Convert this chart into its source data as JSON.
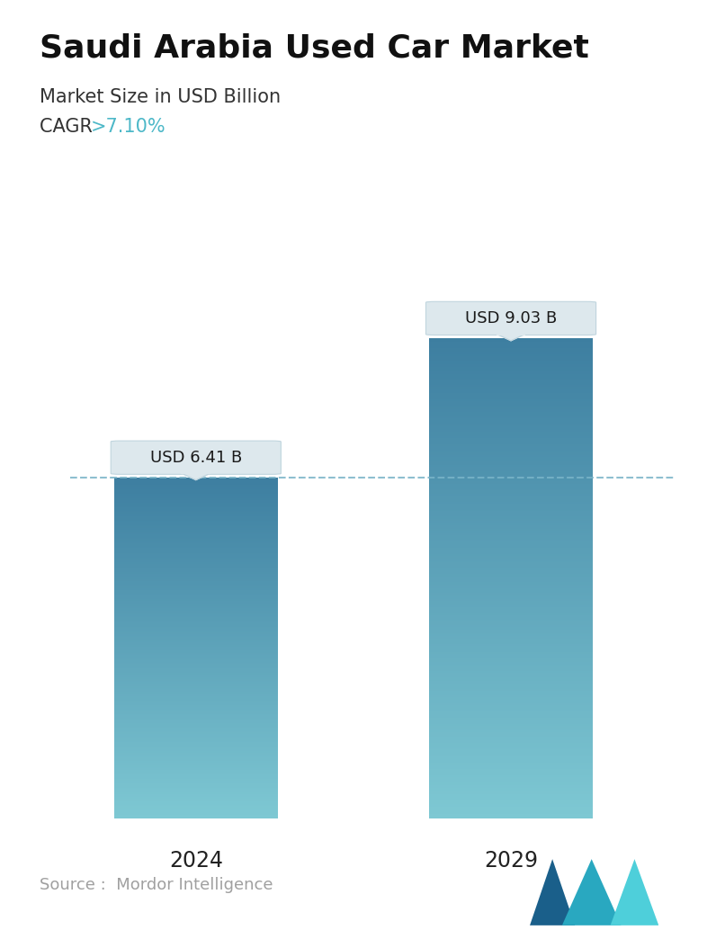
{
  "title": "Saudi Arabia Used Car Market",
  "subtitle": "Market Size in USD Billion",
  "cagr_label": "CAGR ",
  "cagr_value": ">7.10%",
  "cagr_color": "#4db8c8",
  "years": [
    "2024",
    "2029"
  ],
  "values": [
    6.41,
    9.03
  ],
  "bar_labels": [
    "USD 6.41 B",
    "USD 9.03 B"
  ],
  "bar_top_color": "#3d7ea0",
  "bar_bottom_color": "#7ec8d3",
  "dashed_line_color": "#7ab4c8",
  "source_text": "Source :  Mordor Intelligence",
  "source_color": "#a0a0a0",
  "background_color": "#ffffff",
  "title_fontsize": 26,
  "subtitle_fontsize": 15,
  "cagr_fontsize": 15,
  "bar_label_fontsize": 13,
  "year_fontsize": 17,
  "source_fontsize": 13,
  "callout_bg": "#dde8ed",
  "callout_edge": "#c0d5de"
}
